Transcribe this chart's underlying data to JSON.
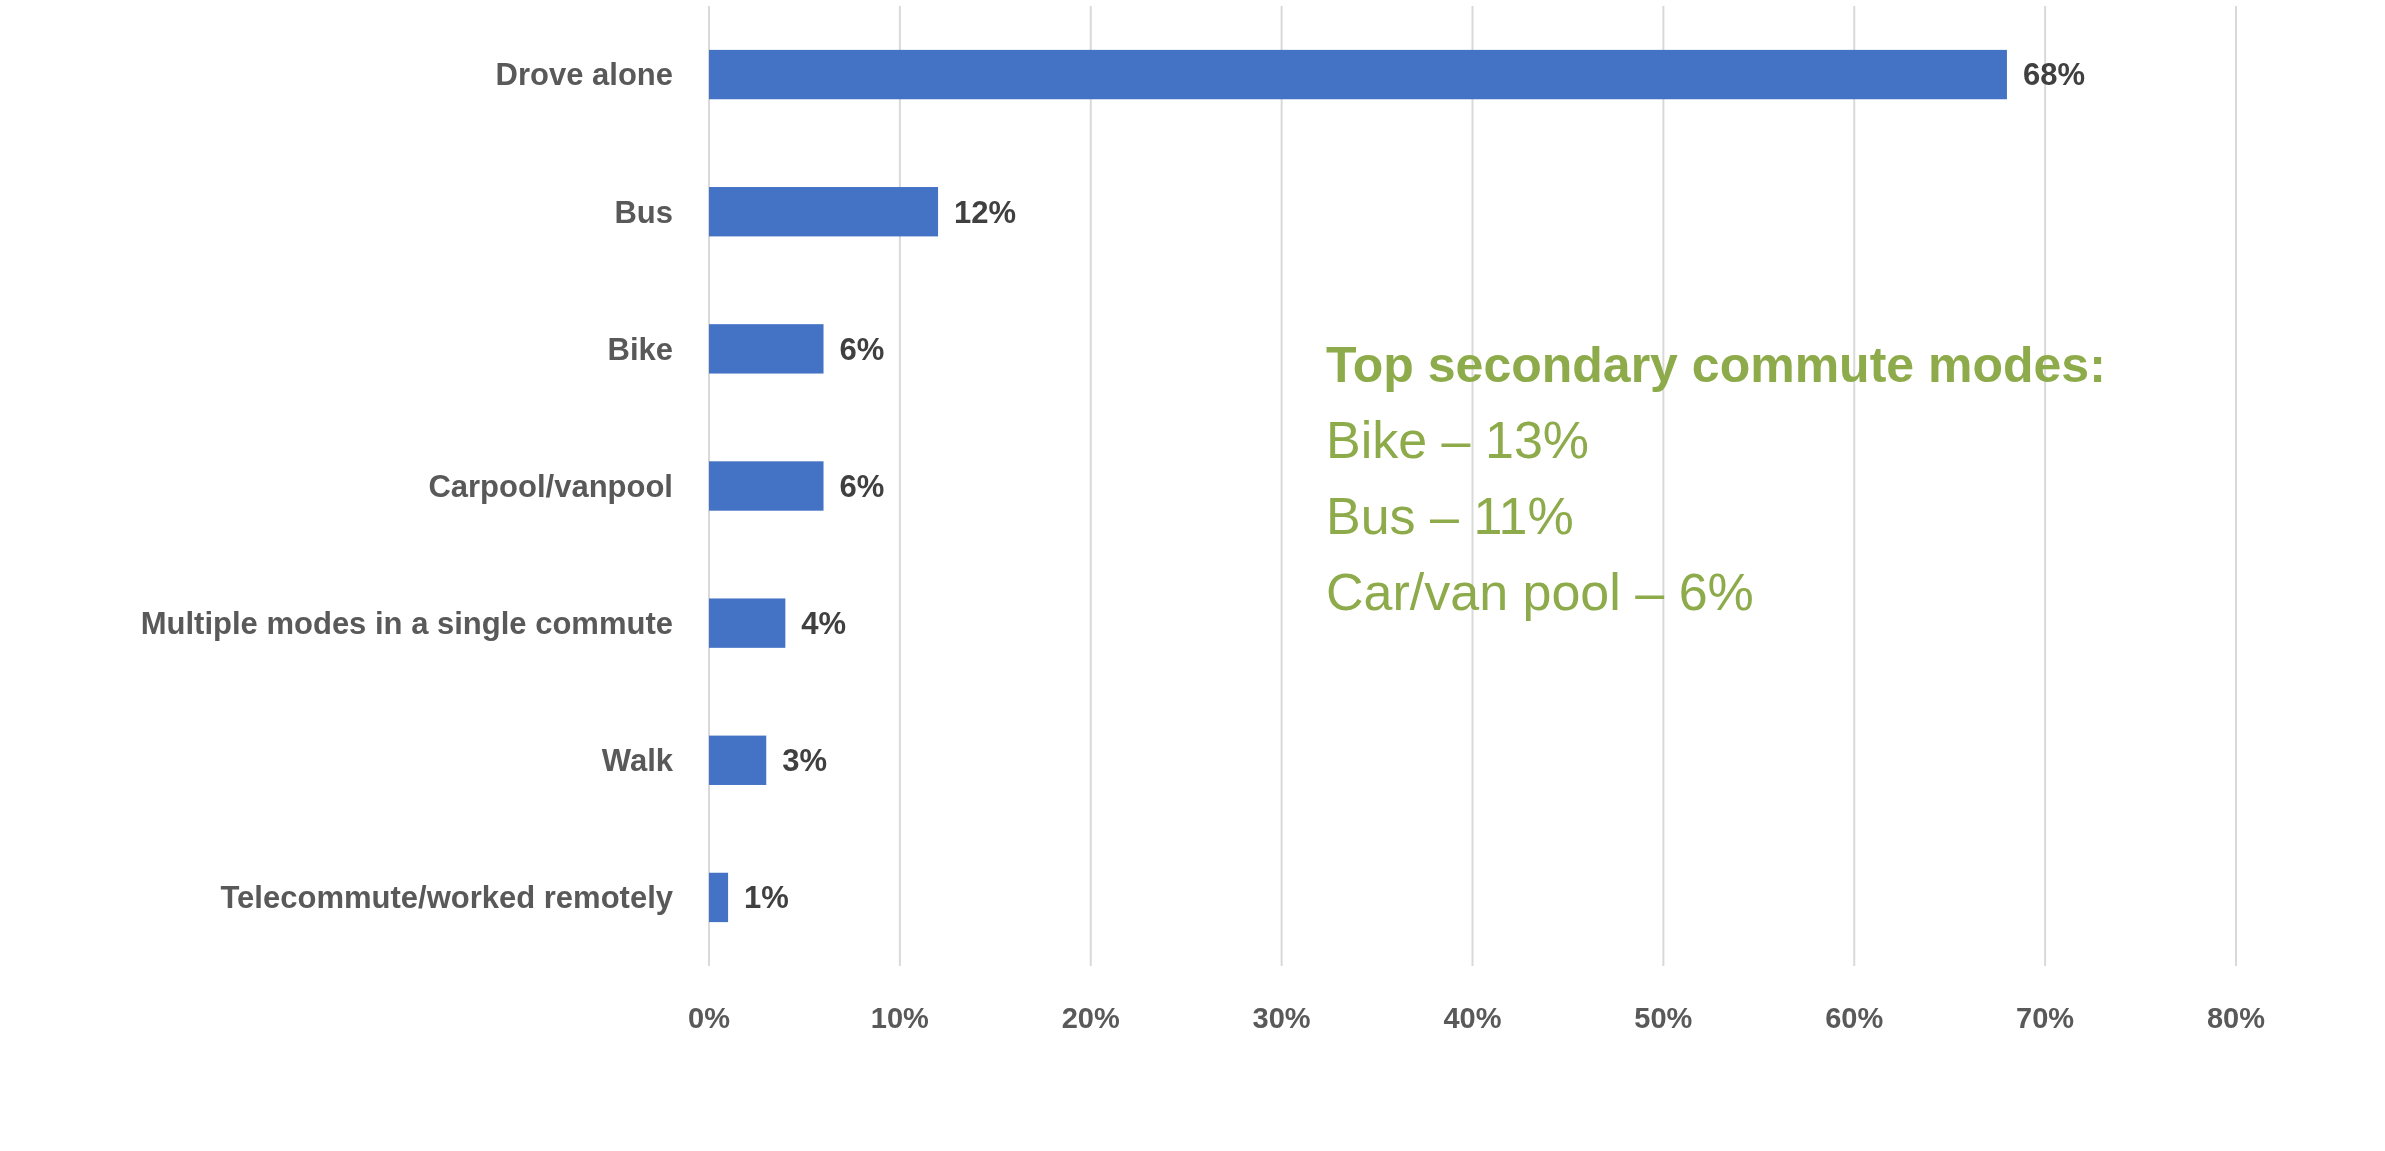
{
  "chart_data": {
    "type": "bar",
    "orientation": "horizontal",
    "categories": [
      "Drove alone",
      "Bus",
      "Bike",
      "Carpool/vanpool",
      "Multiple modes in a single commute",
      "Walk",
      "Telecommute/worked remotely"
    ],
    "values": [
      68,
      12,
      6,
      6,
      4,
      3,
      1
    ],
    "color": "#4472c4",
    "value_labels": [
      "68%",
      "12%",
      "6%",
      "6%",
      "4%",
      "3%",
      "1%"
    ],
    "xlim": [
      0,
      80
    ],
    "xticks": [
      {
        "value": 0,
        "label": "0%"
      },
      {
        "value": 10,
        "label": "10%"
      },
      {
        "value": 20,
        "label": "20%"
      },
      {
        "value": 30,
        "label": "30%"
      },
      {
        "value": 40,
        "label": "40%"
      },
      {
        "value": 50,
        "label": "50%"
      },
      {
        "value": 60,
        "label": "60%"
      },
      {
        "value": 70,
        "label": "70%"
      },
      {
        "value": 80,
        "label": "80%"
      }
    ],
    "grid": "x",
    "annotations": [
      "Top secondary commute modes:",
      "Bike – 13%",
      "Bus – 11%",
      "Car/van pool – 6%"
    ]
  }
}
